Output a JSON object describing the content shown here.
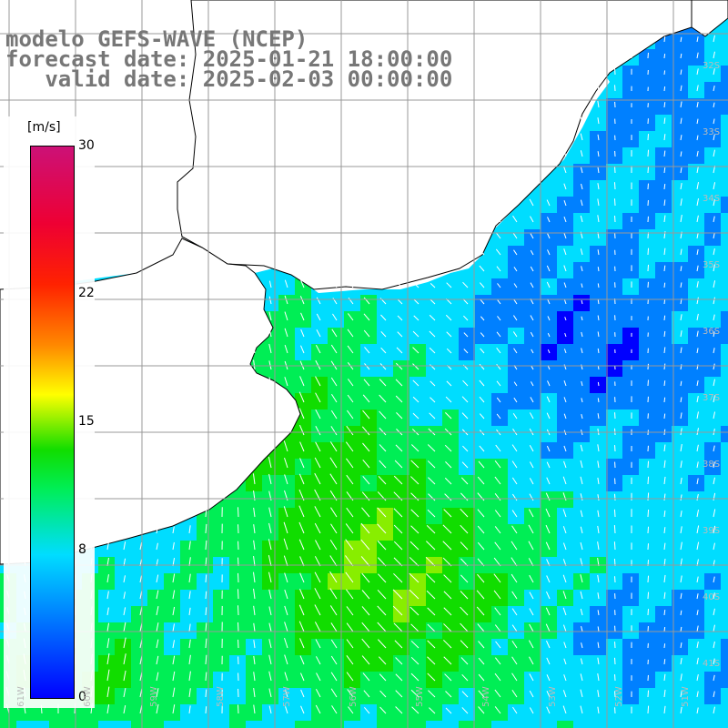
{
  "title": {
    "line1": "modelo GEFS-WAVE (NCEP)",
    "line2": "forecast date: 2025-01-21 18:00:00",
    "line3": "   valid date: 2025-02-03 00:00:00"
  },
  "colorbar": {
    "unit": "[m/s]",
    "min": 0,
    "max": 30,
    "ticks": [
      {
        "value": 30,
        "label": "30"
      },
      {
        "value": 22,
        "label": "22"
      },
      {
        "value": 15,
        "label": "15"
      },
      {
        "value": 8,
        "label": "8"
      },
      {
        "value": 0,
        "label": "0"
      }
    ],
    "colors": [
      "#0000ff",
      "#0080ff",
      "#00ddff",
      "#00ee55",
      "#11dd00",
      "#88ee00",
      "#ffff00",
      "#ff8800",
      "#ff2200",
      "#ee0033",
      "#cc1177"
    ]
  },
  "lat_labels": [
    "32S",
    "33S",
    "34S",
    "35S",
    "36S",
    "37S",
    "38S",
    "39S",
    "40S",
    "41S"
  ],
  "lon_labels": [
    "61W",
    "60W",
    "59W",
    "58W",
    "57W",
    "56W",
    "55W",
    "54W",
    "53W",
    "52W",
    "51W"
  ],
  "map_colors": {
    "land": "#ffffff",
    "grid": "#999999",
    "coast": "#000000",
    "vectors": "#ffffff"
  }
}
